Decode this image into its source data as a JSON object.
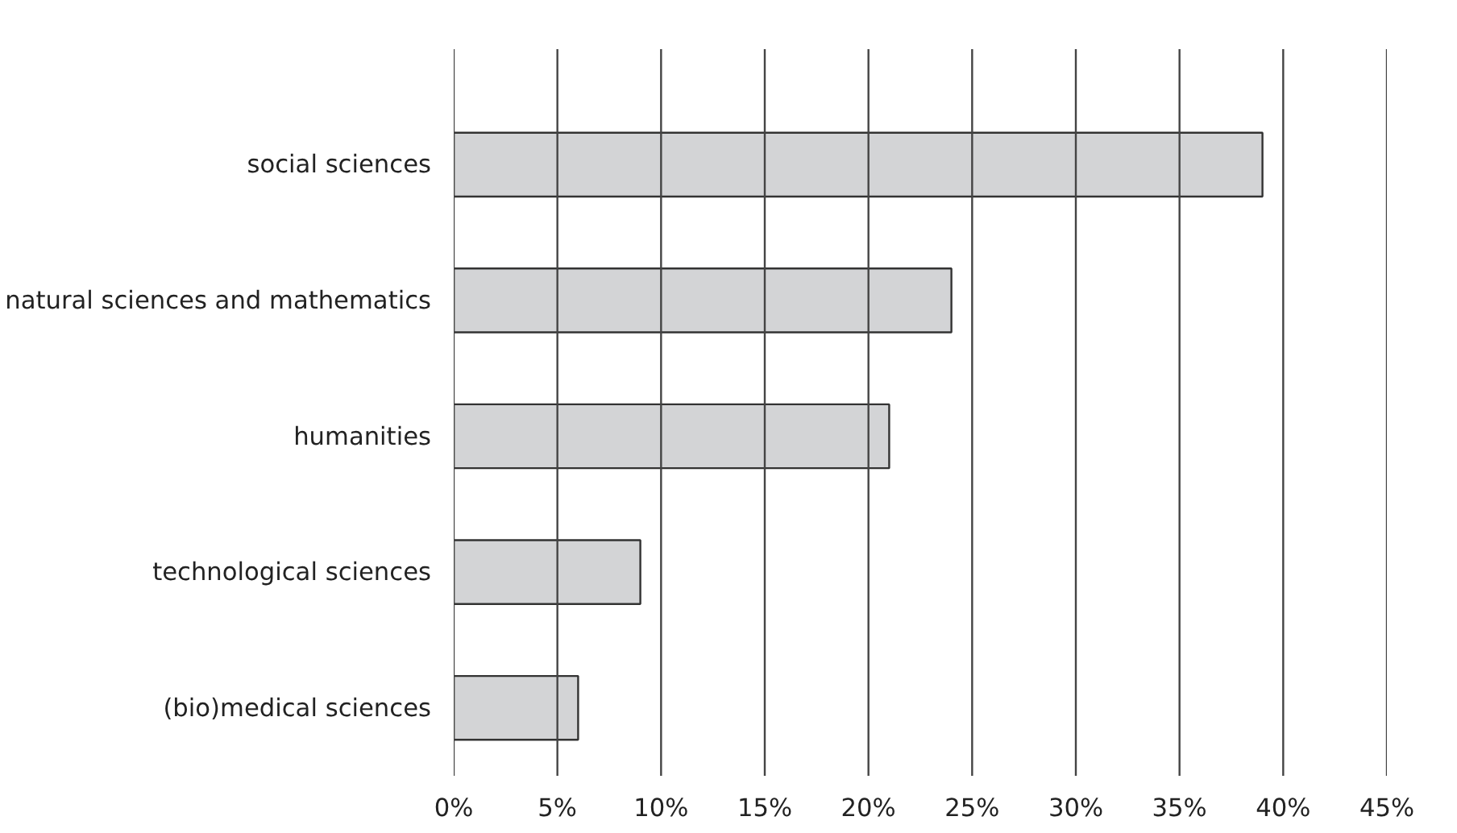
{
  "chart_data": {
    "type": "bar",
    "orientation": "horizontal",
    "categories": [
      "social sciences",
      "natural sciences and mathematics",
      "humanities",
      "technological sciences",
      "(bio)medical sciences"
    ],
    "values": [
      39,
      24,
      21,
      9,
      6
    ],
    "color": "#d3d4d6",
    "xlim": [
      0,
      45
    ],
    "xticks": [
      {
        "value": 0,
        "label": "0%"
      },
      {
        "value": 5,
        "label": "5%"
      },
      {
        "value": 10,
        "label": "10%"
      },
      {
        "value": 15,
        "label": "15%"
      },
      {
        "value": 20,
        "label": "20%"
      },
      {
        "value": 25,
        "label": "25%"
      },
      {
        "value": 30,
        "label": "30%"
      },
      {
        "value": 35,
        "label": "35%"
      },
      {
        "value": 40,
        "label": "40%"
      },
      {
        "value": 45,
        "label": "45%"
      }
    ],
    "grid": "x"
  }
}
